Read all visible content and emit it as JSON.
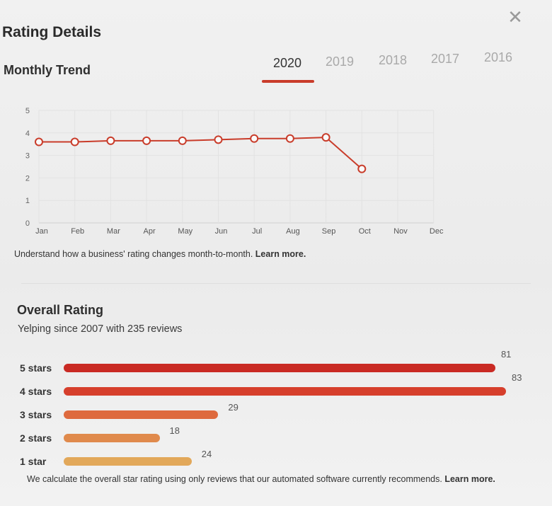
{
  "modal": {
    "title": "Rating Details",
    "close_icon": "close-icon"
  },
  "monthly_trend": {
    "heading": "Monthly Trend",
    "years": [
      {
        "label": "2020",
        "active": true
      },
      {
        "label": "2019",
        "active": false
      },
      {
        "label": "2018",
        "active": false
      },
      {
        "label": "2017",
        "active": false
      },
      {
        "label": "2016",
        "active": false
      }
    ],
    "caption": "Understand how a business' rating changes month-to-month.",
    "caption_link": "Learn more."
  },
  "chart_data": {
    "type": "line",
    "categories": [
      "Jan",
      "Feb",
      "Mar",
      "Apr",
      "May",
      "Jun",
      "Jul",
      "Aug",
      "Sep",
      "Oct",
      "Nov",
      "Dec"
    ],
    "series": [
      {
        "values": [
          3.6,
          3.6,
          3.65,
          3.65,
          3.65,
          3.7,
          3.75,
          3.75,
          3.8,
          2.4,
          null,
          null
        ]
      }
    ],
    "y_ticks": [
      "0",
      "1",
      "2",
      "3",
      "4",
      "5"
    ],
    "ylim": [
      0,
      5
    ],
    "grid": true,
    "color": "#c93c2a"
  },
  "overall": {
    "heading": "Overall Rating",
    "subtitle": "Yelping since 2007 with 235 reviews",
    "rows": [
      {
        "label": "5 stars",
        "count": "81",
        "value": 81,
        "color": "#c92a24"
      },
      {
        "label": "4 stars",
        "count": "83",
        "value": 83,
        "color": "#d63f2c"
      },
      {
        "label": "3 stars",
        "count": "29",
        "value": 29,
        "color": "#de6a3e"
      },
      {
        "label": "2 stars",
        "count": "18",
        "value": 18,
        "color": "#e08a4c"
      },
      {
        "label": "1 star",
        "count": "24",
        "value": 24,
        "color": "#e2a85a"
      }
    ],
    "footnote": "We calculate the overall star rating using only reviews that our automated software currently recommends.",
    "footnote_link": "Learn more."
  }
}
